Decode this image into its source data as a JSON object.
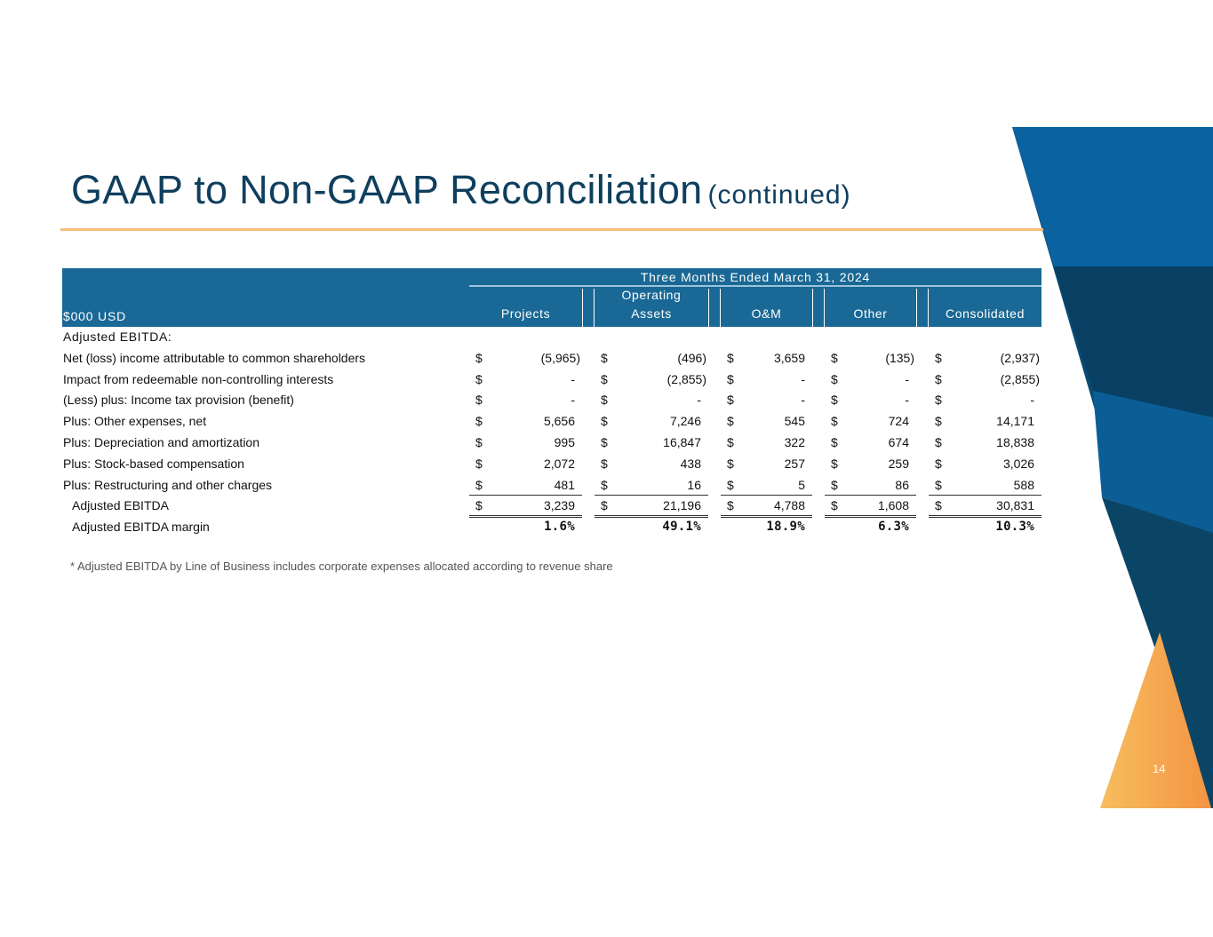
{
  "slide": {
    "title": "GAAP to Non-GAAP Reconciliation",
    "title_suffix": "(continued)",
    "page_number": "14",
    "footnote": "* Adjusted EBITDA by Line of Business includes corporate expenses allocated according to revenue share",
    "colors": {
      "title": "#0f3f5e",
      "header_bg": "#196895",
      "accent_orange": "#f6bd78",
      "deco_blue": "#0b4a72"
    }
  },
  "table": {
    "unit_label": "$000 USD",
    "period": "Three Months Ended March 31, 2024",
    "columns": [
      "Projects",
      "Operating\nAssets",
      "O&M",
      "Other",
      "Consolidated"
    ],
    "section_label": "Adjusted EBITDA:",
    "rows": [
      {
        "label": "Net (loss) income attributable to common shareholders",
        "values": [
          "(5,965)",
          "(496)",
          "3,659",
          "(135)",
          "(2,937)"
        ]
      },
      {
        "label": "Impact from redeemable non-controlling interests",
        "values": [
          "-",
          "(2,855)",
          "-",
          "-",
          "(2,855)"
        ]
      },
      {
        "label": "(Less) plus: Income tax provision (benefit)",
        "values": [
          "-",
          "-",
          "-",
          "-",
          "-"
        ]
      },
      {
        "label": "Plus: Other expenses, net",
        "values": [
          "5,656",
          "7,246",
          "545",
          "724",
          "14,171"
        ]
      },
      {
        "label": "Plus: Depreciation and amortization",
        "values": [
          "995",
          "16,847",
          "322",
          "674",
          "18,838"
        ]
      },
      {
        "label": "Plus: Stock-based compensation",
        "values": [
          "2,072",
          "438",
          "257",
          "259",
          "3,026"
        ]
      },
      {
        "label": "Plus: Restructuring and other charges",
        "values": [
          "481",
          "16",
          "5",
          "86",
          "588"
        ],
        "underline": "single"
      },
      {
        "label": "Adjusted EBITDA",
        "values": [
          "3,239",
          "21,196",
          "4,788",
          "1,608",
          "30,831"
        ],
        "indent": true,
        "underline": "double"
      },
      {
        "label": "Adjusted EBITDA margin",
        "values": [
          "1.6%",
          "49.1%",
          "18.9%",
          "6.3%",
          "10.3%"
        ],
        "indent": true,
        "no_dollar": true
      }
    ],
    "currency_symbol": "$"
  }
}
